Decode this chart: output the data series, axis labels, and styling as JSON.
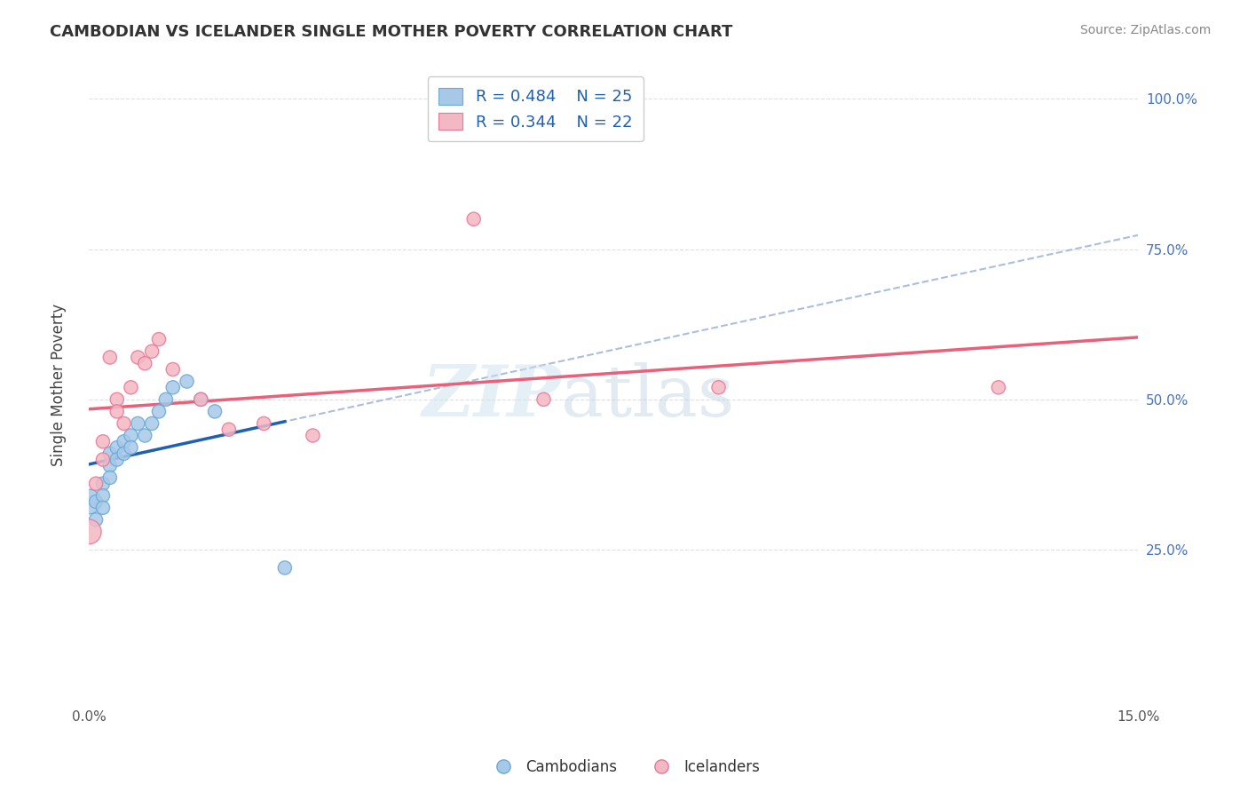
{
  "title": "CAMBODIAN VS ICELANDER SINGLE MOTHER POVERTY CORRELATION CHART",
  "source": "Source: ZipAtlas.com",
  "ylabel": "Single Mother Poverty",
  "xlim": [
    0.0,
    0.15
  ],
  "ylim": [
    0.0,
    1.05
  ],
  "ytick_positions": [
    0.25,
    0.5,
    0.75,
    1.0
  ],
  "ytick_labels": [
    "25.0%",
    "50.0%",
    "75.0%",
    "100.0%"
  ],
  "legend_R_cambodian": "R = 0.484",
  "legend_N_cambodian": "N = 25",
  "legend_R_icelander": "R = 0.344",
  "legend_N_icelander": "N = 22",
  "cambodian_color": "#a8c8e8",
  "cambodian_edge_color": "#6aaad4",
  "icelander_color": "#f4b8c4",
  "icelander_edge_color": "#e87898",
  "cambodian_line_color": "#2060b0",
  "icelander_line_color": "#e8607a",
  "dashed_line_color": "#a0b8d8",
  "background_color": "#ffffff",
  "grid_color": "#e0e0e0",
  "cam_x": [
    0.0,
    0.001,
    0.001,
    0.002,
    0.002,
    0.002,
    0.003,
    0.003,
    0.003,
    0.004,
    0.004,
    0.005,
    0.005,
    0.006,
    0.006,
    0.007,
    0.008,
    0.009,
    0.01,
    0.011,
    0.012,
    0.014,
    0.016,
    0.018,
    0.028
  ],
  "cam_y": [
    0.33,
    0.33,
    0.3,
    0.36,
    0.34,
    0.32,
    0.41,
    0.39,
    0.37,
    0.42,
    0.4,
    0.43,
    0.41,
    0.44,
    0.42,
    0.46,
    0.44,
    0.46,
    0.48,
    0.5,
    0.52,
    0.53,
    0.5,
    0.48,
    0.22
  ],
  "cam_sizes": [
    400,
    120,
    120,
    120,
    120,
    120,
    120,
    120,
    120,
    120,
    120,
    120,
    120,
    120,
    120,
    120,
    120,
    120,
    120,
    120,
    120,
    120,
    120,
    120,
    120
  ],
  "ice_x": [
    0.0,
    0.001,
    0.002,
    0.002,
    0.003,
    0.004,
    0.004,
    0.005,
    0.006,
    0.007,
    0.008,
    0.009,
    0.01,
    0.012,
    0.016,
    0.02,
    0.025,
    0.032,
    0.055,
    0.065,
    0.09,
    0.13
  ],
  "ice_y": [
    0.28,
    0.36,
    0.43,
    0.4,
    0.57,
    0.5,
    0.48,
    0.46,
    0.52,
    0.57,
    0.56,
    0.58,
    0.6,
    0.55,
    0.5,
    0.45,
    0.46,
    0.44,
    0.8,
    0.5,
    0.52,
    0.52
  ],
  "ice_sizes": [
    400,
    120,
    120,
    120,
    120,
    120,
    120,
    120,
    120,
    120,
    120,
    120,
    120,
    120,
    120,
    120,
    120,
    120,
    120,
    120,
    120,
    120
  ]
}
